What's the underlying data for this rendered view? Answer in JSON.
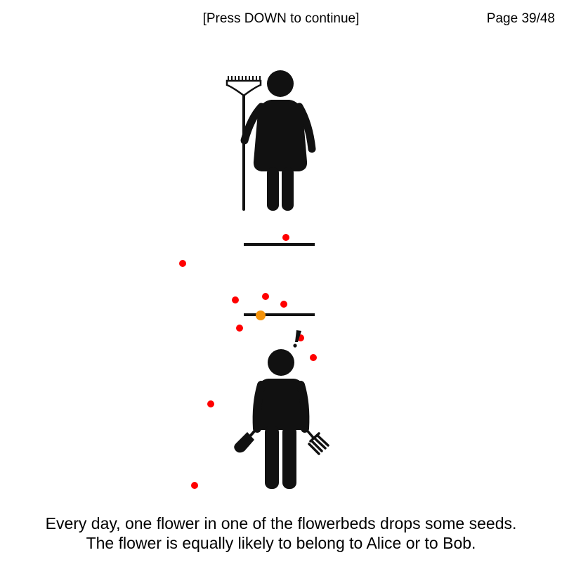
{
  "header": {
    "hint": "[Press DOWN to continue]",
    "page": "Page 39/48"
  },
  "scene": {
    "top_figure": "alice-with-rake",
    "bottom_figure": "bob-with-trowel-and-fork",
    "seed_color": "#ff0000",
    "highlight_seed_color": "#f5930a",
    "ink_color": "#111111",
    "flowerbeds": 2,
    "seeds_visible": 12,
    "highlighted_seeds": 1
  },
  "caption": {
    "line1": "Every day, one flower in one of the flowerbeds drops some seeds.",
    "line2": "The flower is equally likely to belong to Alice or to Bob."
  }
}
